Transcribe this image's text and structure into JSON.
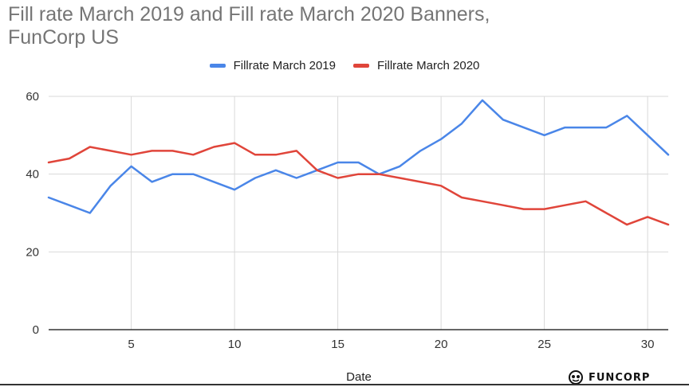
{
  "title_line1": "Fill rate March 2019 and Fill rate March 2020 Banners,",
  "title_line2": "FunCorp US",
  "brand": "FUNCORP",
  "colors": {
    "series_2019": "#4a86e8",
    "series_2020": "#e0453a",
    "grid": "#d9d9d9",
    "axis": "#333333"
  },
  "chart_data": {
    "type": "line",
    "title": "Fill rate March 2019 and Fill rate March 2020 Banners, FunCorp US",
    "xlabel": "Date",
    "ylabel": "",
    "xlim": [
      1,
      31
    ],
    "ylim": [
      0,
      60
    ],
    "xticks": [
      5,
      10,
      15,
      20,
      25,
      30
    ],
    "yticks": [
      0,
      20,
      40,
      60
    ],
    "grid": true,
    "legend_position": "top",
    "x": [
      1,
      2,
      3,
      4,
      5,
      6,
      7,
      8,
      9,
      10,
      11,
      12,
      13,
      14,
      15,
      16,
      17,
      18,
      19,
      20,
      21,
      22,
      23,
      24,
      25,
      26,
      27,
      28,
      29,
      30,
      31
    ],
    "series": [
      {
        "name": "Fillrate March 2019",
        "values": [
          34,
          32,
          30,
          37,
          42,
          38,
          40,
          40,
          38,
          36,
          39,
          41,
          39,
          41,
          43,
          43,
          40,
          42,
          46,
          49,
          53,
          59,
          54,
          52,
          50,
          52,
          52,
          52,
          55,
          50,
          45
        ]
      },
      {
        "name": "Fillrate March 2020",
        "values": [
          43,
          44,
          47,
          46,
          45,
          46,
          46,
          45,
          47,
          48,
          45,
          45,
          46,
          41,
          39,
          40,
          40,
          39,
          38,
          37,
          34,
          33,
          32,
          31,
          31,
          32,
          33,
          30,
          27,
          29,
          27
        ]
      }
    ]
  }
}
